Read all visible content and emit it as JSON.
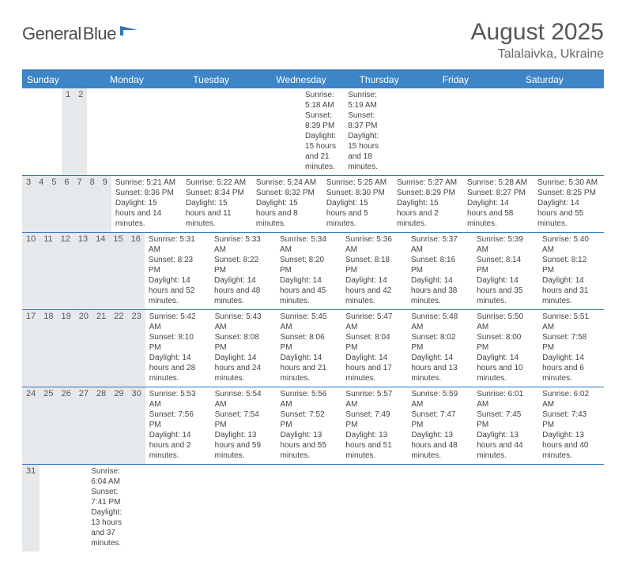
{
  "brand": {
    "name1": "General",
    "name2": "Blue"
  },
  "title": "August 2025",
  "subtitle": "Talalaivka, Ukraine",
  "colors": {
    "header_bg": "#3d85c6",
    "accent": "#2e75b6",
    "shade": "#e9ecef",
    "text": "#444444"
  },
  "daynames": [
    "Sunday",
    "Monday",
    "Tuesday",
    "Wednesday",
    "Thursday",
    "Friday",
    "Saturday"
  ],
  "weeks": [
    [
      null,
      null,
      null,
      null,
      null,
      {
        "n": "1",
        "sr": "Sunrise: 5:18 AM",
        "ss": "Sunset: 8:39 PM",
        "dl": "Daylight: 15 hours and 21 minutes."
      },
      {
        "n": "2",
        "sr": "Sunrise: 5:19 AM",
        "ss": "Sunset: 8:37 PM",
        "dl": "Daylight: 15 hours and 18 minutes."
      }
    ],
    [
      {
        "n": "3",
        "sr": "Sunrise: 5:21 AM",
        "ss": "Sunset: 8:36 PM",
        "dl": "Daylight: 15 hours and 14 minutes."
      },
      {
        "n": "4",
        "sr": "Sunrise: 5:22 AM",
        "ss": "Sunset: 8:34 PM",
        "dl": "Daylight: 15 hours and 11 minutes."
      },
      {
        "n": "5",
        "sr": "Sunrise: 5:24 AM",
        "ss": "Sunset: 8:32 PM",
        "dl": "Daylight: 15 hours and 8 minutes."
      },
      {
        "n": "6",
        "sr": "Sunrise: 5:25 AM",
        "ss": "Sunset: 8:30 PM",
        "dl": "Daylight: 15 hours and 5 minutes."
      },
      {
        "n": "7",
        "sr": "Sunrise: 5:27 AM",
        "ss": "Sunset: 8:29 PM",
        "dl": "Daylight: 15 hours and 2 minutes."
      },
      {
        "n": "8",
        "sr": "Sunrise: 5:28 AM",
        "ss": "Sunset: 8:27 PM",
        "dl": "Daylight: 14 hours and 58 minutes."
      },
      {
        "n": "9",
        "sr": "Sunrise: 5:30 AM",
        "ss": "Sunset: 8:25 PM",
        "dl": "Daylight: 14 hours and 55 minutes."
      }
    ],
    [
      {
        "n": "10",
        "sr": "Sunrise: 5:31 AM",
        "ss": "Sunset: 8:23 PM",
        "dl": "Daylight: 14 hours and 52 minutes."
      },
      {
        "n": "11",
        "sr": "Sunrise: 5:33 AM",
        "ss": "Sunset: 8:22 PM",
        "dl": "Daylight: 14 hours and 48 minutes."
      },
      {
        "n": "12",
        "sr": "Sunrise: 5:34 AM",
        "ss": "Sunset: 8:20 PM",
        "dl": "Daylight: 14 hours and 45 minutes."
      },
      {
        "n": "13",
        "sr": "Sunrise: 5:36 AM",
        "ss": "Sunset: 8:18 PM",
        "dl": "Daylight: 14 hours and 42 minutes."
      },
      {
        "n": "14",
        "sr": "Sunrise: 5:37 AM",
        "ss": "Sunset: 8:16 PM",
        "dl": "Daylight: 14 hours and 38 minutes."
      },
      {
        "n": "15",
        "sr": "Sunrise: 5:39 AM",
        "ss": "Sunset: 8:14 PM",
        "dl": "Daylight: 14 hours and 35 minutes."
      },
      {
        "n": "16",
        "sr": "Sunrise: 5:40 AM",
        "ss": "Sunset: 8:12 PM",
        "dl": "Daylight: 14 hours and 31 minutes."
      }
    ],
    [
      {
        "n": "17",
        "sr": "Sunrise: 5:42 AM",
        "ss": "Sunset: 8:10 PM",
        "dl": "Daylight: 14 hours and 28 minutes."
      },
      {
        "n": "18",
        "sr": "Sunrise: 5:43 AM",
        "ss": "Sunset: 8:08 PM",
        "dl": "Daylight: 14 hours and 24 minutes."
      },
      {
        "n": "19",
        "sr": "Sunrise: 5:45 AM",
        "ss": "Sunset: 8:06 PM",
        "dl": "Daylight: 14 hours and 21 minutes."
      },
      {
        "n": "20",
        "sr": "Sunrise: 5:47 AM",
        "ss": "Sunset: 8:04 PM",
        "dl": "Daylight: 14 hours and 17 minutes."
      },
      {
        "n": "21",
        "sr": "Sunrise: 5:48 AM",
        "ss": "Sunset: 8:02 PM",
        "dl": "Daylight: 14 hours and 13 minutes."
      },
      {
        "n": "22",
        "sr": "Sunrise: 5:50 AM",
        "ss": "Sunset: 8:00 PM",
        "dl": "Daylight: 14 hours and 10 minutes."
      },
      {
        "n": "23",
        "sr": "Sunrise: 5:51 AM",
        "ss": "Sunset: 7:58 PM",
        "dl": "Daylight: 14 hours and 6 minutes."
      }
    ],
    [
      {
        "n": "24",
        "sr": "Sunrise: 5:53 AM",
        "ss": "Sunset: 7:56 PM",
        "dl": "Daylight: 14 hours and 2 minutes."
      },
      {
        "n": "25",
        "sr": "Sunrise: 5:54 AM",
        "ss": "Sunset: 7:54 PM",
        "dl": "Daylight: 13 hours and 59 minutes."
      },
      {
        "n": "26",
        "sr": "Sunrise: 5:56 AM",
        "ss": "Sunset: 7:52 PM",
        "dl": "Daylight: 13 hours and 55 minutes."
      },
      {
        "n": "27",
        "sr": "Sunrise: 5:57 AM",
        "ss": "Sunset: 7:49 PM",
        "dl": "Daylight: 13 hours and 51 minutes."
      },
      {
        "n": "28",
        "sr": "Sunrise: 5:59 AM",
        "ss": "Sunset: 7:47 PM",
        "dl": "Daylight: 13 hours and 48 minutes."
      },
      {
        "n": "29",
        "sr": "Sunrise: 6:01 AM",
        "ss": "Sunset: 7:45 PM",
        "dl": "Daylight: 13 hours and 44 minutes."
      },
      {
        "n": "30",
        "sr": "Sunrise: 6:02 AM",
        "ss": "Sunset: 7:43 PM",
        "dl": "Daylight: 13 hours and 40 minutes."
      }
    ],
    [
      {
        "n": "31",
        "sr": "Sunrise: 6:04 AM",
        "ss": "Sunset: 7:41 PM",
        "dl": "Daylight: 13 hours and 37 minutes."
      },
      null,
      null,
      null,
      null,
      null,
      null
    ]
  ]
}
